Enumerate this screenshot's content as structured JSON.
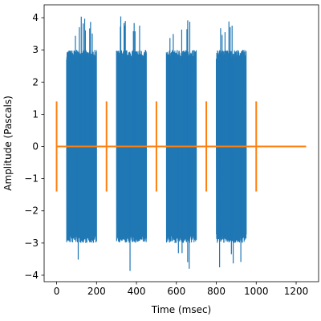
{
  "chart_data": {
    "type": "line",
    "xlabel": "Time (msec)",
    "ylabel": "Amplitude (Pascals)",
    "xlim": [
      -62.5,
      1312.5
    ],
    "ylim": [
      -4.2,
      4.4
    ],
    "x_ticks": [
      0,
      200,
      400,
      600,
      800,
      1000,
      1200
    ],
    "x_tick_labels": [
      "0",
      "200",
      "400",
      "600",
      "800",
      "1000",
      "1200"
    ],
    "y_ticks": [
      -4,
      -3,
      -2,
      -1,
      0,
      1,
      2,
      3,
      4
    ],
    "y_tick_labels": [
      "−4",
      "−3",
      "−2",
      "−1",
      "0",
      "1",
      "2",
      "3",
      "4"
    ],
    "grid": false,
    "series": [
      {
        "color": "#1f77b4",
        "bursts": [
          {
            "start": 50,
            "end": 200,
            "envelope": 3.0,
            "max": 4.05,
            "min": -3.9
          },
          {
            "start": 300,
            "end": 450,
            "envelope": 3.0,
            "max": 4.05,
            "min": -3.95
          },
          {
            "start": 550,
            "end": 700,
            "envelope": 3.0,
            "max": 4.05,
            "min": -3.85
          },
          {
            "start": 800,
            "end": 950,
            "envelope": 3.0,
            "max": 4.05,
            "min": -3.8
          }
        ]
      },
      {
        "color": "#ff7f0e",
        "baseline": {
          "x_start": 0,
          "x_end": 1250,
          "y": 0
        },
        "pulses": [
          {
            "x": 0,
            "y_min": -1.4,
            "y_max": 1.4
          },
          {
            "x": 250,
            "y_min": -1.4,
            "y_max": 1.4
          },
          {
            "x": 500,
            "y_min": -1.4,
            "y_max": 1.4
          },
          {
            "x": 750,
            "y_min": -1.4,
            "y_max": 1.4
          },
          {
            "x": 1000,
            "y_min": -1.4,
            "y_max": 1.4
          }
        ]
      }
    ]
  }
}
